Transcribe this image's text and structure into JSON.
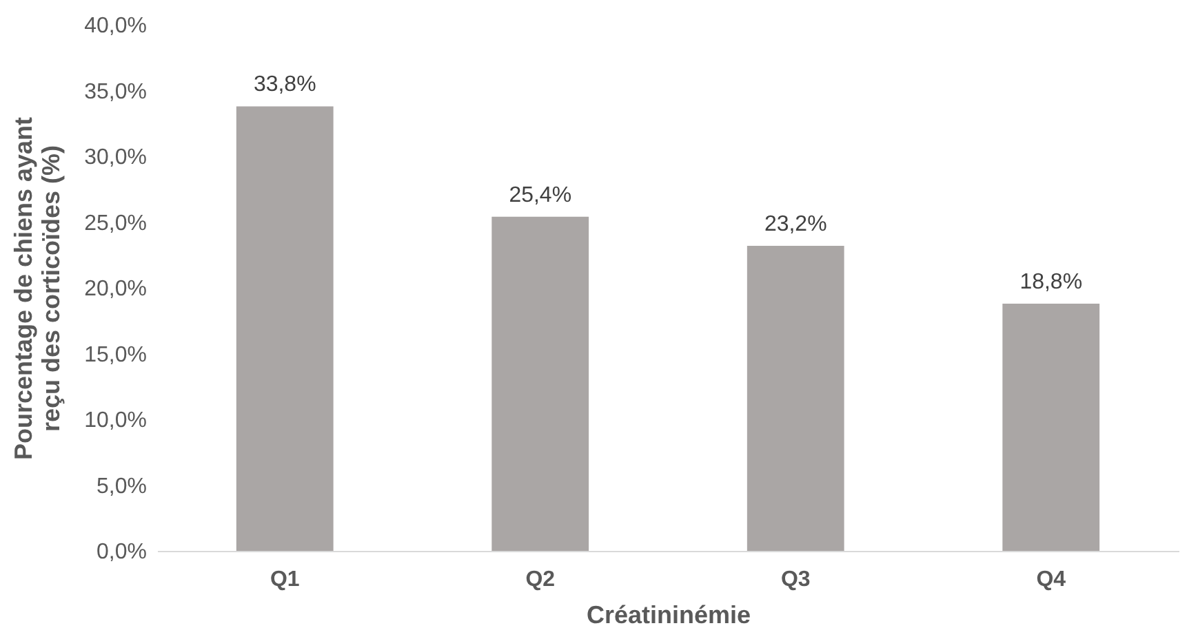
{
  "chart_data": {
    "type": "bar",
    "xlabel": "Créatininémie",
    "ylabel": "Pourcentage de chiens ayant reçu des corticoïdes (%)",
    "categories": [
      "Q1",
      "Q2",
      "Q3",
      "Q4"
    ],
    "values": [
      33.8,
      25.4,
      23.2,
      18.8
    ],
    "value_labels": [
      "33,8%",
      "25,4%",
      "23,2%",
      "18,8%"
    ],
    "color": "#aaa6a5",
    "ylim": [
      0,
      40
    ],
    "yticks": [
      {
        "value": 0,
        "label": "0,0%"
      },
      {
        "value": 5,
        "label": "5,0%"
      },
      {
        "value": 10,
        "label": "10,0%"
      },
      {
        "value": 15,
        "label": "15,0%"
      },
      {
        "value": 20,
        "label": "20,0%"
      },
      {
        "value": 25,
        "label": "25,0%"
      },
      {
        "value": 30,
        "label": "30,0%"
      },
      {
        "value": 35,
        "label": "35,0%"
      },
      {
        "value": 40,
        "label": "40,0%"
      }
    ],
    "grid": false
  }
}
